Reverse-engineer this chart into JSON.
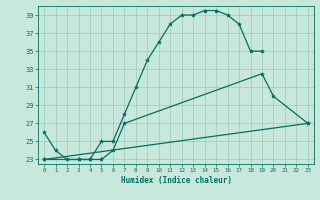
{
  "xlabel": "Humidex (Indice chaleur)",
  "bg_color": "#c8e8dc",
  "line_color": "#007060",
  "grid_color": "#a0c8bc",
  "xlim": [
    -0.5,
    23.5
  ],
  "ylim": [
    22.5,
    40.0
  ],
  "yticks": [
    23,
    25,
    27,
    29,
    31,
    33,
    35,
    37,
    39
  ],
  "xticks": [
    0,
    1,
    2,
    3,
    4,
    5,
    6,
    7,
    8,
    9,
    10,
    11,
    12,
    13,
    14,
    15,
    16,
    17,
    18,
    19,
    20,
    21,
    22,
    23
  ],
  "s1x": [
    0,
    1,
    2,
    3,
    4,
    5,
    6,
    7,
    8,
    9,
    10,
    11,
    12,
    13,
    14,
    15,
    16,
    17,
    18,
    19
  ],
  "s1y": [
    26.0,
    24.0,
    23.0,
    23.0,
    23.0,
    25.0,
    25.0,
    28.0,
    31.0,
    34.0,
    36.0,
    38.0,
    39.0,
    39.0,
    39.5,
    39.5,
    39.0,
    38.0,
    35.0,
    35.0
  ],
  "s2x": [
    0,
    3,
    4,
    5,
    6,
    7,
    19,
    20,
    23
  ],
  "s2y": [
    23.0,
    23.0,
    23.0,
    23.0,
    24.0,
    27.0,
    32.5,
    30.0,
    27.0
  ],
  "s3x": [
    0,
    23
  ],
  "s3y": [
    23.0,
    27.0
  ]
}
